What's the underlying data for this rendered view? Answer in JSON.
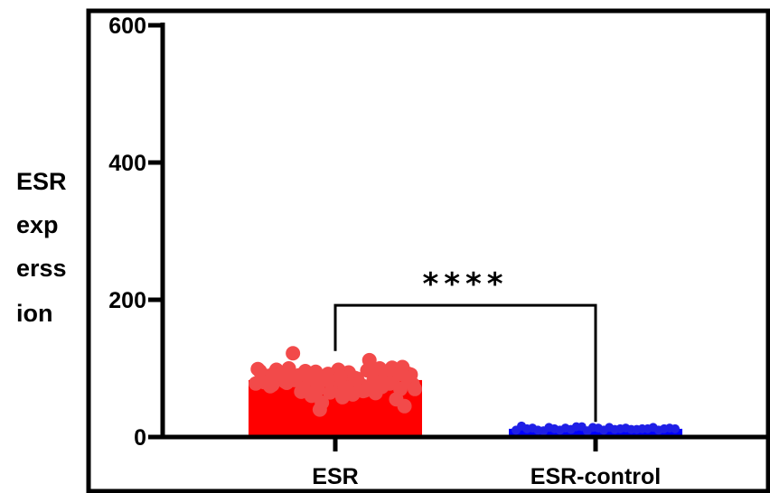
{
  "chart_data": {
    "type": "bar",
    "title": "",
    "xlabel": "",
    "ylabel_lines": [
      "ESR",
      "exp",
      "erss",
      "ion"
    ],
    "ylim": [
      0,
      600
    ],
    "yticks": [
      0,
      200,
      400,
      600
    ],
    "categories": [
      "ESR",
      "ESR-control"
    ],
    "values": [
      83,
      12
    ],
    "colors": [
      "#ff0000",
      "#0000ff"
    ],
    "point_colors": [
      "#f24a4a",
      "#1f1fe6"
    ],
    "points": [
      [
        78,
        88,
        92,
        85,
        70,
        95,
        101,
        82,
        76,
        90,
        64,
        88,
        97,
        84,
        72,
        93,
        80,
        86,
        58,
        99,
        74,
        91,
        83,
        102,
        69,
        87,
        79,
        94,
        66,
        85,
        122,
        112,
        81,
        76,
        98,
        62,
        89,
        73,
        96,
        84,
        77,
        92,
        45,
        40,
        55,
        60,
        88,
        71,
        100,
        83,
        95,
        79,
        67,
        90,
        86,
        74,
        93,
        81,
        98,
        70,
        65,
        87,
        50,
        92,
        84,
        78,
        96,
        73,
        89,
        82,
        100,
        68,
        91,
        85,
        76,
        94,
        80,
        88
      ],
      [
        10,
        12,
        14,
        11,
        13,
        9,
        15,
        12,
        10,
        13,
        11,
        14,
        12,
        16,
        10,
        13,
        11,
        12,
        14,
        9,
        13,
        12,
        10,
        15,
        11,
        14,
        12,
        13,
        10,
        12
      ]
    ],
    "significance": {
      "label": "****",
      "between": [
        0,
        1
      ],
      "y": 192
    }
  }
}
